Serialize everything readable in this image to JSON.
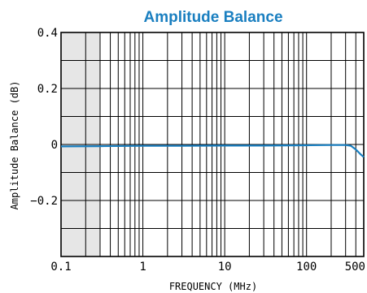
{
  "chart_data": {
    "type": "line",
    "title": "Amplitude Balance",
    "xlabel": "FREQUENCY (MHz)",
    "ylabel": "Amplitude Balance (dB)",
    "x_scale": "log",
    "xlim": [
      0.1,
      500
    ],
    "ylim": [
      -0.4,
      0.4
    ],
    "x_tick_labels": [
      "0.1",
      "1",
      "10",
      "100",
      "500"
    ],
    "x_ticks": [
      0.1,
      1,
      10,
      100,
      500
    ],
    "y_tick_labels": [
      "0.4",
      "0.2",
      "0",
      "−0.2"
    ],
    "y_ticks": [
      0.4,
      0.2,
      0,
      -0.2
    ],
    "grid": true,
    "shaded_band_x": [
      0.1,
      0.3
    ],
    "series": [
      {
        "x": [
          0.1,
          0.3,
          1,
          3,
          10,
          30,
          100,
          200,
          300,
          350,
          400,
          450,
          500
        ],
        "y": [
          -0.007,
          -0.006,
          -0.005,
          -0.005,
          -0.004,
          -0.004,
          -0.003,
          -0.002,
          -0.002,
          -0.005,
          -0.018,
          -0.033,
          -0.045
        ]
      }
    ],
    "colors": {
      "line": "#1a7fc0",
      "title": "#1a7fc0",
      "band": "#e6e6e6"
    }
  }
}
